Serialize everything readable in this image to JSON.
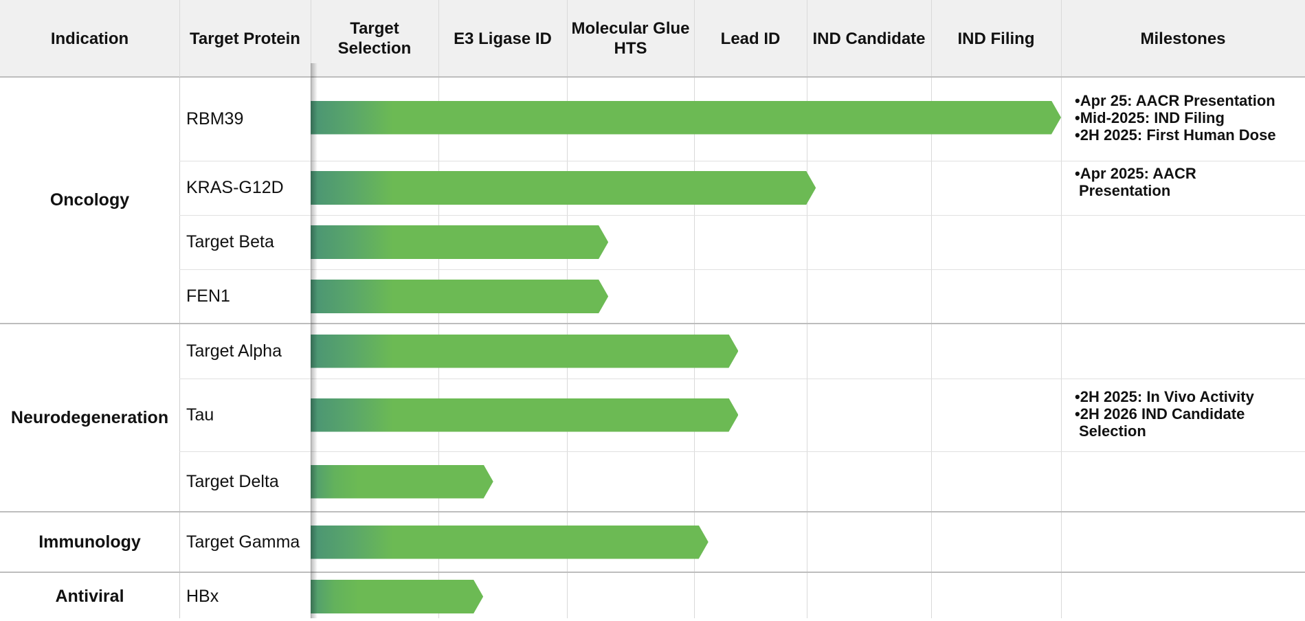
{
  "chart_data": {
    "type": "bar",
    "title": "",
    "stages": [
      "Target Selection",
      "E3 Ligase ID",
      "Molecular Glue HTS",
      "Lead ID",
      "IND Candidate",
      "IND Filing"
    ],
    "columns": {
      "indication": "Indication",
      "target": "Target Protein",
      "milestones": "Milestones"
    },
    "groups": [
      {
        "indication": "Oncology",
        "programs": [
          {
            "target": "RBM39",
            "progress": 6.0,
            "milestones": [
              "•Apr 25: AACR Presentation",
              "•Mid-2025: IND Filing",
              "•2H 2025: First Human Dose"
            ]
          },
          {
            "target": "KRAS-G12D",
            "progress": 4.04,
            "milestones": [
              "•Apr 2025: AACR",
              "Presentation"
            ]
          },
          {
            "target": "Target Beta",
            "progress": 2.38,
            "milestones": []
          },
          {
            "target": "FEN1",
            "progress": 2.38,
            "milestones": []
          }
        ]
      },
      {
        "indication": "Neurodegeneration",
        "programs": [
          {
            "target": "Target Alpha",
            "progress": 3.42,
            "milestones": []
          },
          {
            "target": "Tau",
            "progress": 3.42,
            "milestones": [
              "•2H 2025: In Vivo Activity",
              "•2H 2026 IND Candidate",
              "Selection"
            ]
          },
          {
            "target": "Target Delta",
            "progress": 1.46,
            "milestones": []
          }
        ]
      },
      {
        "indication": "Immunology",
        "programs": [
          {
            "target": "Target Gamma",
            "progress": 3.18,
            "milestones": []
          }
        ]
      },
      {
        "indication": "Antiviral",
        "programs": [
          {
            "target": "HBx",
            "progress": 1.38,
            "milestones": []
          }
        ]
      }
    ]
  }
}
